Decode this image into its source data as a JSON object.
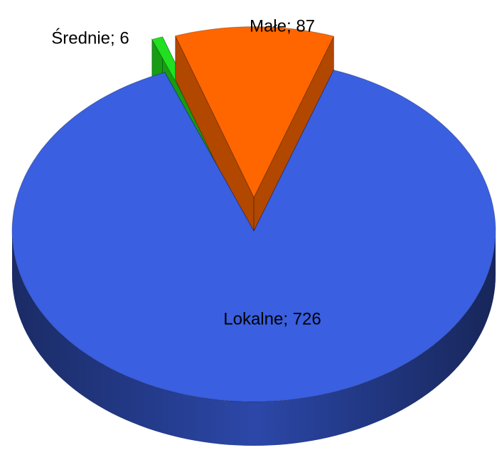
{
  "chart_data": {
    "type": "pie3d",
    "categories": [
      "Średnie",
      "Małe",
      "Lokalne"
    ],
    "values": [
      6,
      87,
      726
    ],
    "value_labels": [
      "Średnie; 6",
      "Małe; 87",
      "Lokalne; 726"
    ],
    "colors": [
      "#22e01f",
      "#ff6600",
      "#3a5fe0"
    ]
  }
}
